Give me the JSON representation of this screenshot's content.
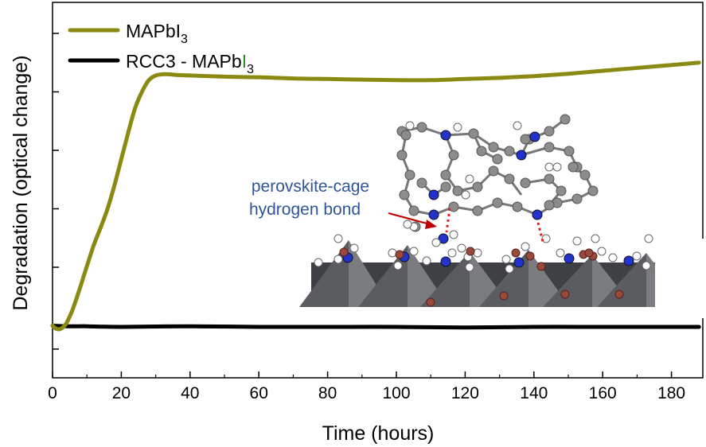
{
  "chart_data": {
    "type": "line",
    "xlabel": "Time (hours)",
    "ylabel": "Degradation (optical change)",
    "xlim": [
      0,
      188
    ],
    "ylim": [
      -0.55,
      5.3
    ],
    "xticks": [
      0,
      20,
      40,
      60,
      80,
      100,
      120,
      140,
      160,
      180
    ],
    "yticks": [
      -0.4,
      0,
      1,
      2,
      3,
      4,
      5
    ],
    "grid": false,
    "legend_position": "top-left",
    "series": [
      {
        "name": "MAPbI3",
        "label_main": "MAPbI",
        "label_sub": "3",
        "color": "#8a8a12",
        "x": [
          0,
          1,
          2,
          3,
          4,
          5,
          6,
          8,
          10,
          12,
          14,
          16,
          18,
          20,
          22,
          24,
          26,
          28,
          30,
          32,
          34,
          36,
          40,
          50,
          60,
          70,
          80,
          90,
          100,
          110,
          120,
          130,
          140,
          150,
          160,
          170,
          180,
          188
        ],
        "y": [
          0.0,
          -0.05,
          -0.06,
          -0.03,
          0.04,
          0.16,
          0.3,
          0.65,
          1.02,
          1.38,
          1.68,
          2.0,
          2.4,
          2.85,
          3.3,
          3.72,
          4.0,
          4.2,
          4.28,
          4.3,
          4.3,
          4.29,
          4.28,
          4.26,
          4.25,
          4.23,
          4.22,
          4.21,
          4.2,
          4.2,
          4.22,
          4.24,
          4.27,
          4.31,
          4.36,
          4.41,
          4.46,
          4.5
        ]
      },
      {
        "name": "RCC3 - MAPbI3",
        "label_main": "RCC3 - MAPb",
        "label_i": "I",
        "label_sub": "3",
        "color": "#000000",
        "i_color": "#2e8b22",
        "x": [
          0,
          5,
          10,
          20,
          40,
          60,
          80,
          100,
          120,
          140,
          160,
          180,
          188
        ],
        "y": [
          0.0,
          -0.01,
          -0.01,
          -0.02,
          -0.01,
          -0.02,
          -0.02,
          -0.02,
          -0.03,
          -0.02,
          -0.02,
          -0.02,
          -0.02
        ]
      }
    ],
    "annotation": {
      "line1": "perovskite-cage",
      "line2": "hydrogen bond",
      "arrow_color": "#c00000",
      "bond_color": "#e02020",
      "colors": {
        "octahedron": "#5a5c60",
        "octahedron_dark": "#3e4044",
        "octahedron_light": "#7a7c80",
        "carbon": "#8c8c8c",
        "nitrogen": "#2233cc",
        "hydrogen": "#ffffff",
        "iodine": "#9a4a3a"
      }
    }
  }
}
